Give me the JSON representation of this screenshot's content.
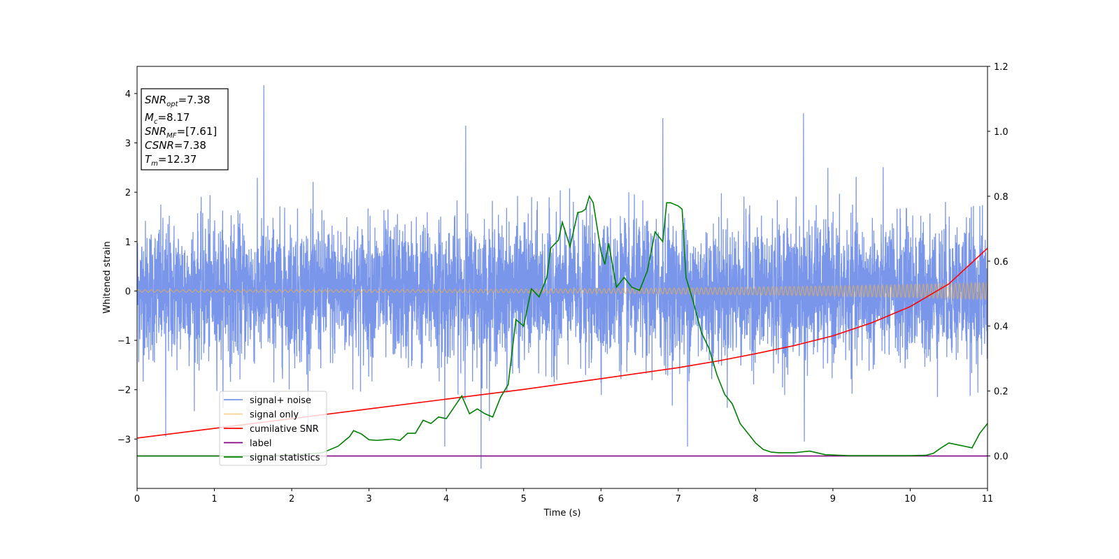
{
  "chart_data": {
    "type": "line",
    "xlabel": "Time (s)",
    "ylabel": "Whitened strain",
    "xlim": [
      0,
      11
    ],
    "ylim": [
      -4,
      4.55
    ],
    "y2lim": [
      -0.1,
      1.2
    ],
    "x_ticks": [
      0,
      1,
      2,
      3,
      4,
      5,
      6,
      7,
      8,
      9,
      10,
      11
    ],
    "y_ticks": [
      -3,
      -2,
      -1,
      0,
      1,
      2,
      3,
      4
    ],
    "y2_ticks": [
      0.0,
      0.2,
      0.4,
      0.6,
      0.8,
      1.0,
      1.2
    ],
    "legend_location": "lower-left",
    "annotation": [
      {
        "base": "SNR",
        "sub": "opt",
        "value": "=7.38"
      },
      {
        "base": "M",
        "sub": "c",
        "value": "=8.17"
      },
      {
        "base": "SNR",
        "sub": "MF",
        "value": "=[7.61]"
      },
      {
        "base": "CSNR",
        "sub": "",
        "value": "=7.38"
      },
      {
        "base": "T",
        "sub": "m",
        "value": "=12.37"
      }
    ],
    "series": [
      {
        "name": "signal+ noise",
        "color": "#4169e1",
        "axis": "left",
        "kind": "noise",
        "sigma": 0.7,
        "spikes": [
          [
            1.64,
            4.17
          ],
          [
            4.45,
            -3.6
          ],
          [
            8.62,
            3.6
          ],
          [
            6.8,
            3.5
          ],
          [
            4.25,
            3.35
          ],
          [
            0.37,
            -2.95
          ],
          [
            7.12,
            -3.15
          ],
          [
            8.63,
            -3.05
          ],
          [
            3.98,
            -3.15
          ]
        ]
      },
      {
        "name": "signal only",
        "color": "#f5b041",
        "axis": "left",
        "kind": "chirp",
        "amp_start": 0.025,
        "amp_end": 0.17
      },
      {
        "name": "cumilative SNR",
        "color": "#ff0000",
        "axis": "right",
        "x": [
          0,
          1,
          2,
          3,
          4,
          5,
          6,
          7,
          7.5,
          8,
          8.5,
          9,
          9.5,
          10,
          10.5,
          11
        ],
        "y": [
          0.055,
          0.085,
          0.115,
          0.145,
          0.175,
          0.205,
          0.238,
          0.272,
          0.292,
          0.315,
          0.34,
          0.37,
          0.41,
          0.46,
          0.53,
          0.64
        ]
      },
      {
        "name": "label",
        "color": "#800080",
        "axis": "right",
        "x": [
          0,
          11
        ],
        "y": [
          0,
          0
        ]
      },
      {
        "name": "signal statistics",
        "color": "#008000",
        "axis": "right",
        "x": [
          0,
          0.5,
          1.0,
          1.5,
          2.0,
          2.4,
          2.6,
          2.75,
          2.8,
          2.9,
          3.0,
          3.1,
          3.2,
          3.3,
          3.4,
          3.5,
          3.6,
          3.7,
          3.8,
          3.9,
          4.0,
          4.1,
          4.2,
          4.3,
          4.4,
          4.5,
          4.6,
          4.7,
          4.8,
          4.9,
          5.0,
          5.1,
          5.2,
          5.3,
          5.35,
          5.45,
          5.5,
          5.6,
          5.7,
          5.75,
          5.8,
          5.85,
          5.9,
          6.0,
          6.05,
          6.1,
          6.2,
          6.3,
          6.4,
          6.5,
          6.6,
          6.7,
          6.8,
          6.85,
          6.9,
          7.0,
          7.05,
          7.1,
          7.2,
          7.3,
          7.4,
          7.5,
          7.6,
          7.7,
          7.8,
          7.9,
          8.0,
          8.1,
          8.2,
          8.3,
          8.5,
          8.7,
          8.9,
          9.2,
          9.5,
          10.0,
          10.2,
          10.3,
          10.4,
          10.5,
          10.6,
          10.7,
          10.8,
          10.9,
          11.0
        ],
        "y": [
          0.0,
          0.0,
          0.0,
          0.0,
          0.002,
          0.01,
          0.03,
          0.06,
          0.078,
          0.068,
          0.05,
          0.048,
          0.05,
          0.052,
          0.048,
          0.07,
          0.07,
          0.11,
          0.1,
          0.12,
          0.115,
          0.15,
          0.185,
          0.13,
          0.145,
          0.13,
          0.12,
          0.18,
          0.22,
          0.42,
          0.4,
          0.515,
          0.49,
          0.55,
          0.64,
          0.665,
          0.72,
          0.645,
          0.75,
          0.752,
          0.76,
          0.8,
          0.78,
          0.63,
          0.59,
          0.655,
          0.52,
          0.55,
          0.52,
          0.51,
          0.57,
          0.69,
          0.66,
          0.78,
          0.78,
          0.77,
          0.76,
          0.55,
          0.47,
          0.38,
          0.33,
          0.25,
          0.19,
          0.16,
          0.1,
          0.07,
          0.04,
          0.02,
          0.012,
          0.01,
          0.01,
          0.015,
          0.004,
          0.001,
          0.001,
          0.001,
          0.002,
          0.008,
          0.025,
          0.04,
          0.035,
          0.03,
          0.025,
          0.07,
          0.1
        ]
      }
    ]
  }
}
